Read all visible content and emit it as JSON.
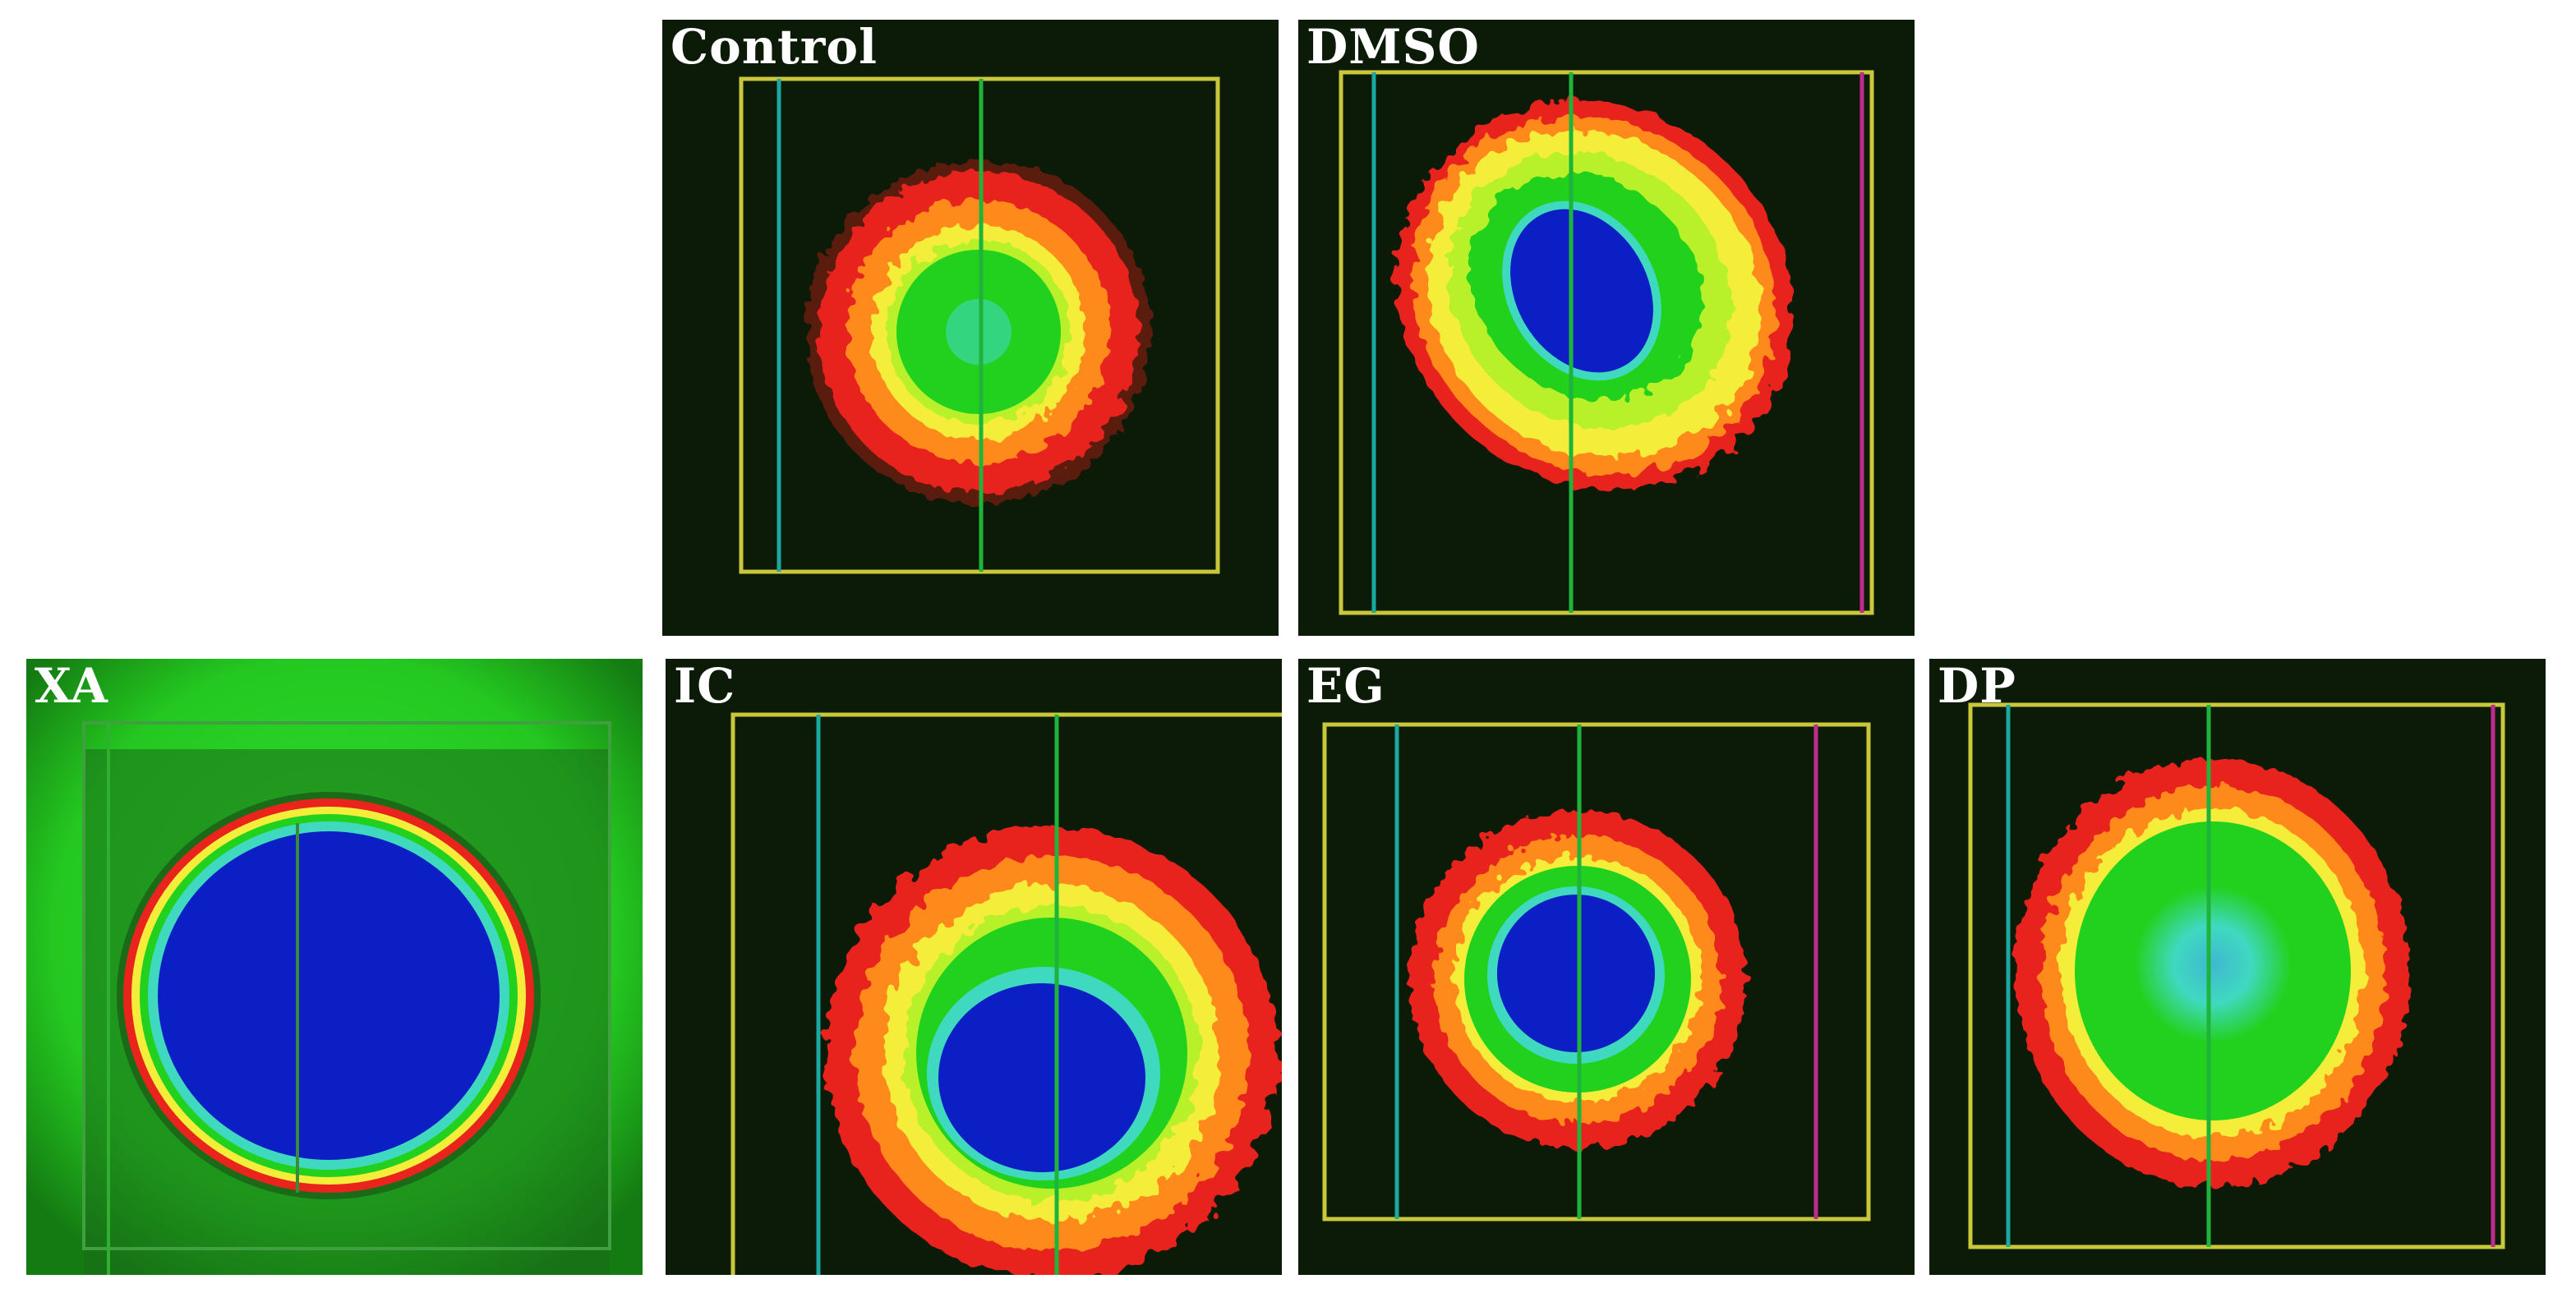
{
  "figure": {
    "panels": [
      {
        "id": "control",
        "label": "Control"
      },
      {
        "id": "dmso",
        "label": "DMSO"
      },
      {
        "id": "xa",
        "label": "XA"
      },
      {
        "id": "ic",
        "label": "IC"
      },
      {
        "id": "eg",
        "label": "EG"
      },
      {
        "id": "dp",
        "label": "DP"
      }
    ]
  },
  "colors": {
    "background": "#0c1a08",
    "frame_line": "#c8c83a",
    "outer_ring": "#e8241c",
    "orange_ring": "#ff8a1e",
    "yellow_ring": "#f4ee3a",
    "green_zone": "#22d11e",
    "cyan_zone": "#3fd9c0",
    "blue_core": "#0b1fc4",
    "cursor_cyan": "#1aa8a0",
    "cursor_green": "#1eb43c",
    "cursor_magenta": "#c02a8c"
  }
}
